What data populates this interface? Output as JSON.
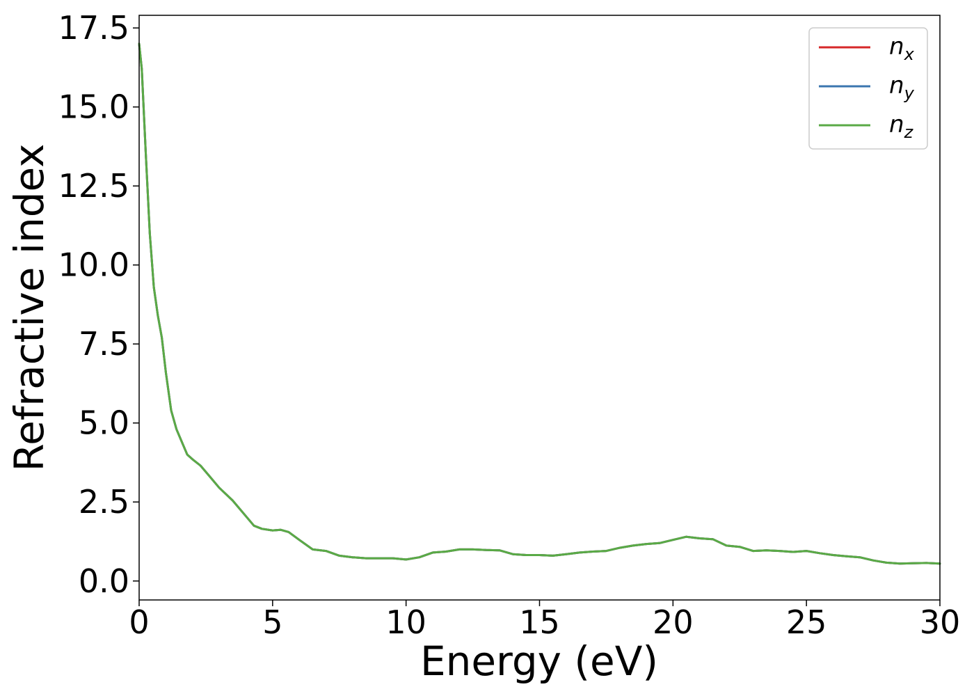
{
  "chart_data": {
    "type": "line",
    "title": "",
    "xlabel": "Energy (eV)",
    "ylabel": "Refractive index",
    "xlim": [
      0,
      30
    ],
    "ylim": [
      -0.6,
      17.9
    ],
    "xticks": [
      0,
      5,
      10,
      15,
      20,
      25,
      30
    ],
    "xtick_labels": [
      "0",
      "5",
      "10",
      "15",
      "20",
      "25",
      "30"
    ],
    "yticks": [
      0,
      2.5,
      5,
      7.5,
      10,
      12.5,
      15,
      17.5
    ],
    "ytick_labels": [
      "0.0",
      "2.5",
      "5.0",
      "7.5",
      "10.0",
      "12.5",
      "15.0",
      "17.5"
    ],
    "grid": false,
    "legend": {
      "placement": "top-right",
      "entries": [
        {
          "base": "n",
          "sub": "x",
          "color": "#d62728"
        },
        {
          "base": "n",
          "sub": "y",
          "color": "#3b75af"
        },
        {
          "base": "n",
          "sub": "z",
          "color": "#5aaa46"
        }
      ]
    },
    "x": [
      0,
      0.1,
      0.25,
      0.4,
      0.55,
      0.7,
      0.85,
      1.0,
      1.2,
      1.4,
      1.6,
      1.8,
      2.0,
      2.3,
      2.6,
      3.0,
      3.5,
      4.0,
      4.3,
      4.6,
      5.0,
      5.3,
      5.6,
      6.0,
      6.5,
      7.0,
      7.5,
      8.0,
      8.5,
      9.0,
      9.5,
      10.0,
      10.5,
      11.0,
      11.5,
      12.0,
      12.5,
      13.0,
      13.5,
      14.0,
      14.5,
      15.0,
      15.5,
      16.0,
      16.5,
      17.0,
      17.5,
      18.0,
      18.5,
      19.0,
      19.5,
      20.0,
      20.5,
      21.0,
      21.5,
      22.0,
      22.5,
      23.0,
      23.5,
      24.0,
      24.5,
      25.0,
      25.5,
      26.0,
      26.5,
      27.0,
      27.5,
      28.0,
      28.5,
      29.0,
      29.5,
      30.0
    ],
    "series": [
      {
        "name": "n_x",
        "color": "#d62728",
        "values": [
          17.0,
          16.2,
          13.5,
          11.0,
          9.3,
          8.4,
          7.7,
          6.6,
          5.4,
          4.8,
          4.4,
          4.0,
          3.85,
          3.65,
          3.35,
          2.95,
          2.55,
          2.05,
          1.75,
          1.65,
          1.6,
          1.62,
          1.55,
          1.3,
          1.0,
          0.95,
          0.8,
          0.75,
          0.72,
          0.72,
          0.72,
          0.68,
          0.75,
          0.9,
          0.93,
          1.0,
          1.0,
          0.98,
          0.97,
          0.85,
          0.82,
          0.82,
          0.8,
          0.85,
          0.9,
          0.93,
          0.95,
          1.05,
          1.12,
          1.17,
          1.2,
          1.3,
          1.4,
          1.35,
          1.32,
          1.12,
          1.08,
          0.95,
          0.97,
          0.95,
          0.92,
          0.95,
          0.88,
          0.82,
          0.78,
          0.75,
          0.65,
          0.58,
          0.55,
          0.56,
          0.57,
          0.55
        ]
      },
      {
        "name": "n_y",
        "color": "#3b75af",
        "values": [
          17.0,
          16.2,
          13.5,
          11.0,
          9.3,
          8.4,
          7.7,
          6.6,
          5.4,
          4.8,
          4.4,
          4.0,
          3.85,
          3.65,
          3.35,
          2.95,
          2.55,
          2.05,
          1.75,
          1.65,
          1.6,
          1.62,
          1.55,
          1.3,
          1.0,
          0.95,
          0.8,
          0.75,
          0.72,
          0.72,
          0.72,
          0.68,
          0.75,
          0.9,
          0.93,
          1.0,
          1.0,
          0.98,
          0.97,
          0.85,
          0.82,
          0.82,
          0.8,
          0.85,
          0.9,
          0.93,
          0.95,
          1.05,
          1.12,
          1.17,
          1.2,
          1.3,
          1.4,
          1.35,
          1.32,
          1.12,
          1.08,
          0.95,
          0.97,
          0.95,
          0.92,
          0.95,
          0.88,
          0.82,
          0.78,
          0.75,
          0.65,
          0.58,
          0.55,
          0.56,
          0.57,
          0.55
        ]
      },
      {
        "name": "n_z",
        "color": "#5aaa46",
        "values": [
          17.0,
          16.2,
          13.5,
          11.0,
          9.3,
          8.4,
          7.7,
          6.6,
          5.4,
          4.8,
          4.4,
          4.0,
          3.85,
          3.65,
          3.35,
          2.95,
          2.55,
          2.05,
          1.75,
          1.65,
          1.6,
          1.62,
          1.55,
          1.3,
          1.0,
          0.95,
          0.8,
          0.75,
          0.72,
          0.72,
          0.72,
          0.68,
          0.75,
          0.9,
          0.93,
          1.0,
          1.0,
          0.98,
          0.97,
          0.85,
          0.82,
          0.82,
          0.8,
          0.85,
          0.9,
          0.93,
          0.95,
          1.05,
          1.12,
          1.17,
          1.2,
          1.3,
          1.4,
          1.35,
          1.32,
          1.12,
          1.08,
          0.95,
          0.97,
          0.95,
          0.92,
          0.95,
          0.88,
          0.82,
          0.78,
          0.75,
          0.65,
          0.58,
          0.55,
          0.56,
          0.57,
          0.55
        ]
      }
    ]
  }
}
